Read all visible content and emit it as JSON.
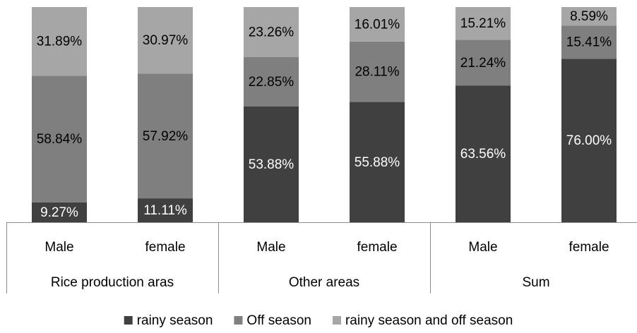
{
  "chart_data": {
    "type": "stacked_bar",
    "categories": [
      "Male",
      "female",
      "Male",
      "female",
      "Male",
      "female"
    ],
    "groups": [
      "Rice production aras",
      "Other areas",
      "Sum"
    ],
    "ylim": [
      0,
      100
    ],
    "legend": "bottom",
    "series": [
      {
        "name": "rainy season",
        "color": "#404040",
        "label_color": "#ffffff",
        "values": [
          9.27,
          11.11,
          53.88,
          55.88,
          63.56,
          76.0
        ],
        "value_labels": [
          "9.27%",
          "11.11%",
          "53.88%",
          "55.88%",
          "63.56%",
          "76.00%"
        ]
      },
      {
        "name": "Off season",
        "color": "#7f7f7f",
        "label_color": "#000000",
        "values": [
          58.84,
          57.92,
          22.85,
          28.11,
          21.24,
          15.41
        ],
        "value_labels": [
          "58.84%",
          "57.92%",
          "22.85%",
          "28.11%",
          "21.24%",
          "15.41%"
        ]
      },
      {
        "name": "rainy season and off season",
        "color": "#a6a6a6",
        "label_color": "#000000",
        "values": [
          31.89,
          30.97,
          23.26,
          16.01,
          15.21,
          8.59
        ],
        "value_labels": [
          "31.89%",
          "30.97%",
          "23.26%",
          "16.01%",
          "15.21%",
          "8.59%"
        ]
      }
    ]
  }
}
